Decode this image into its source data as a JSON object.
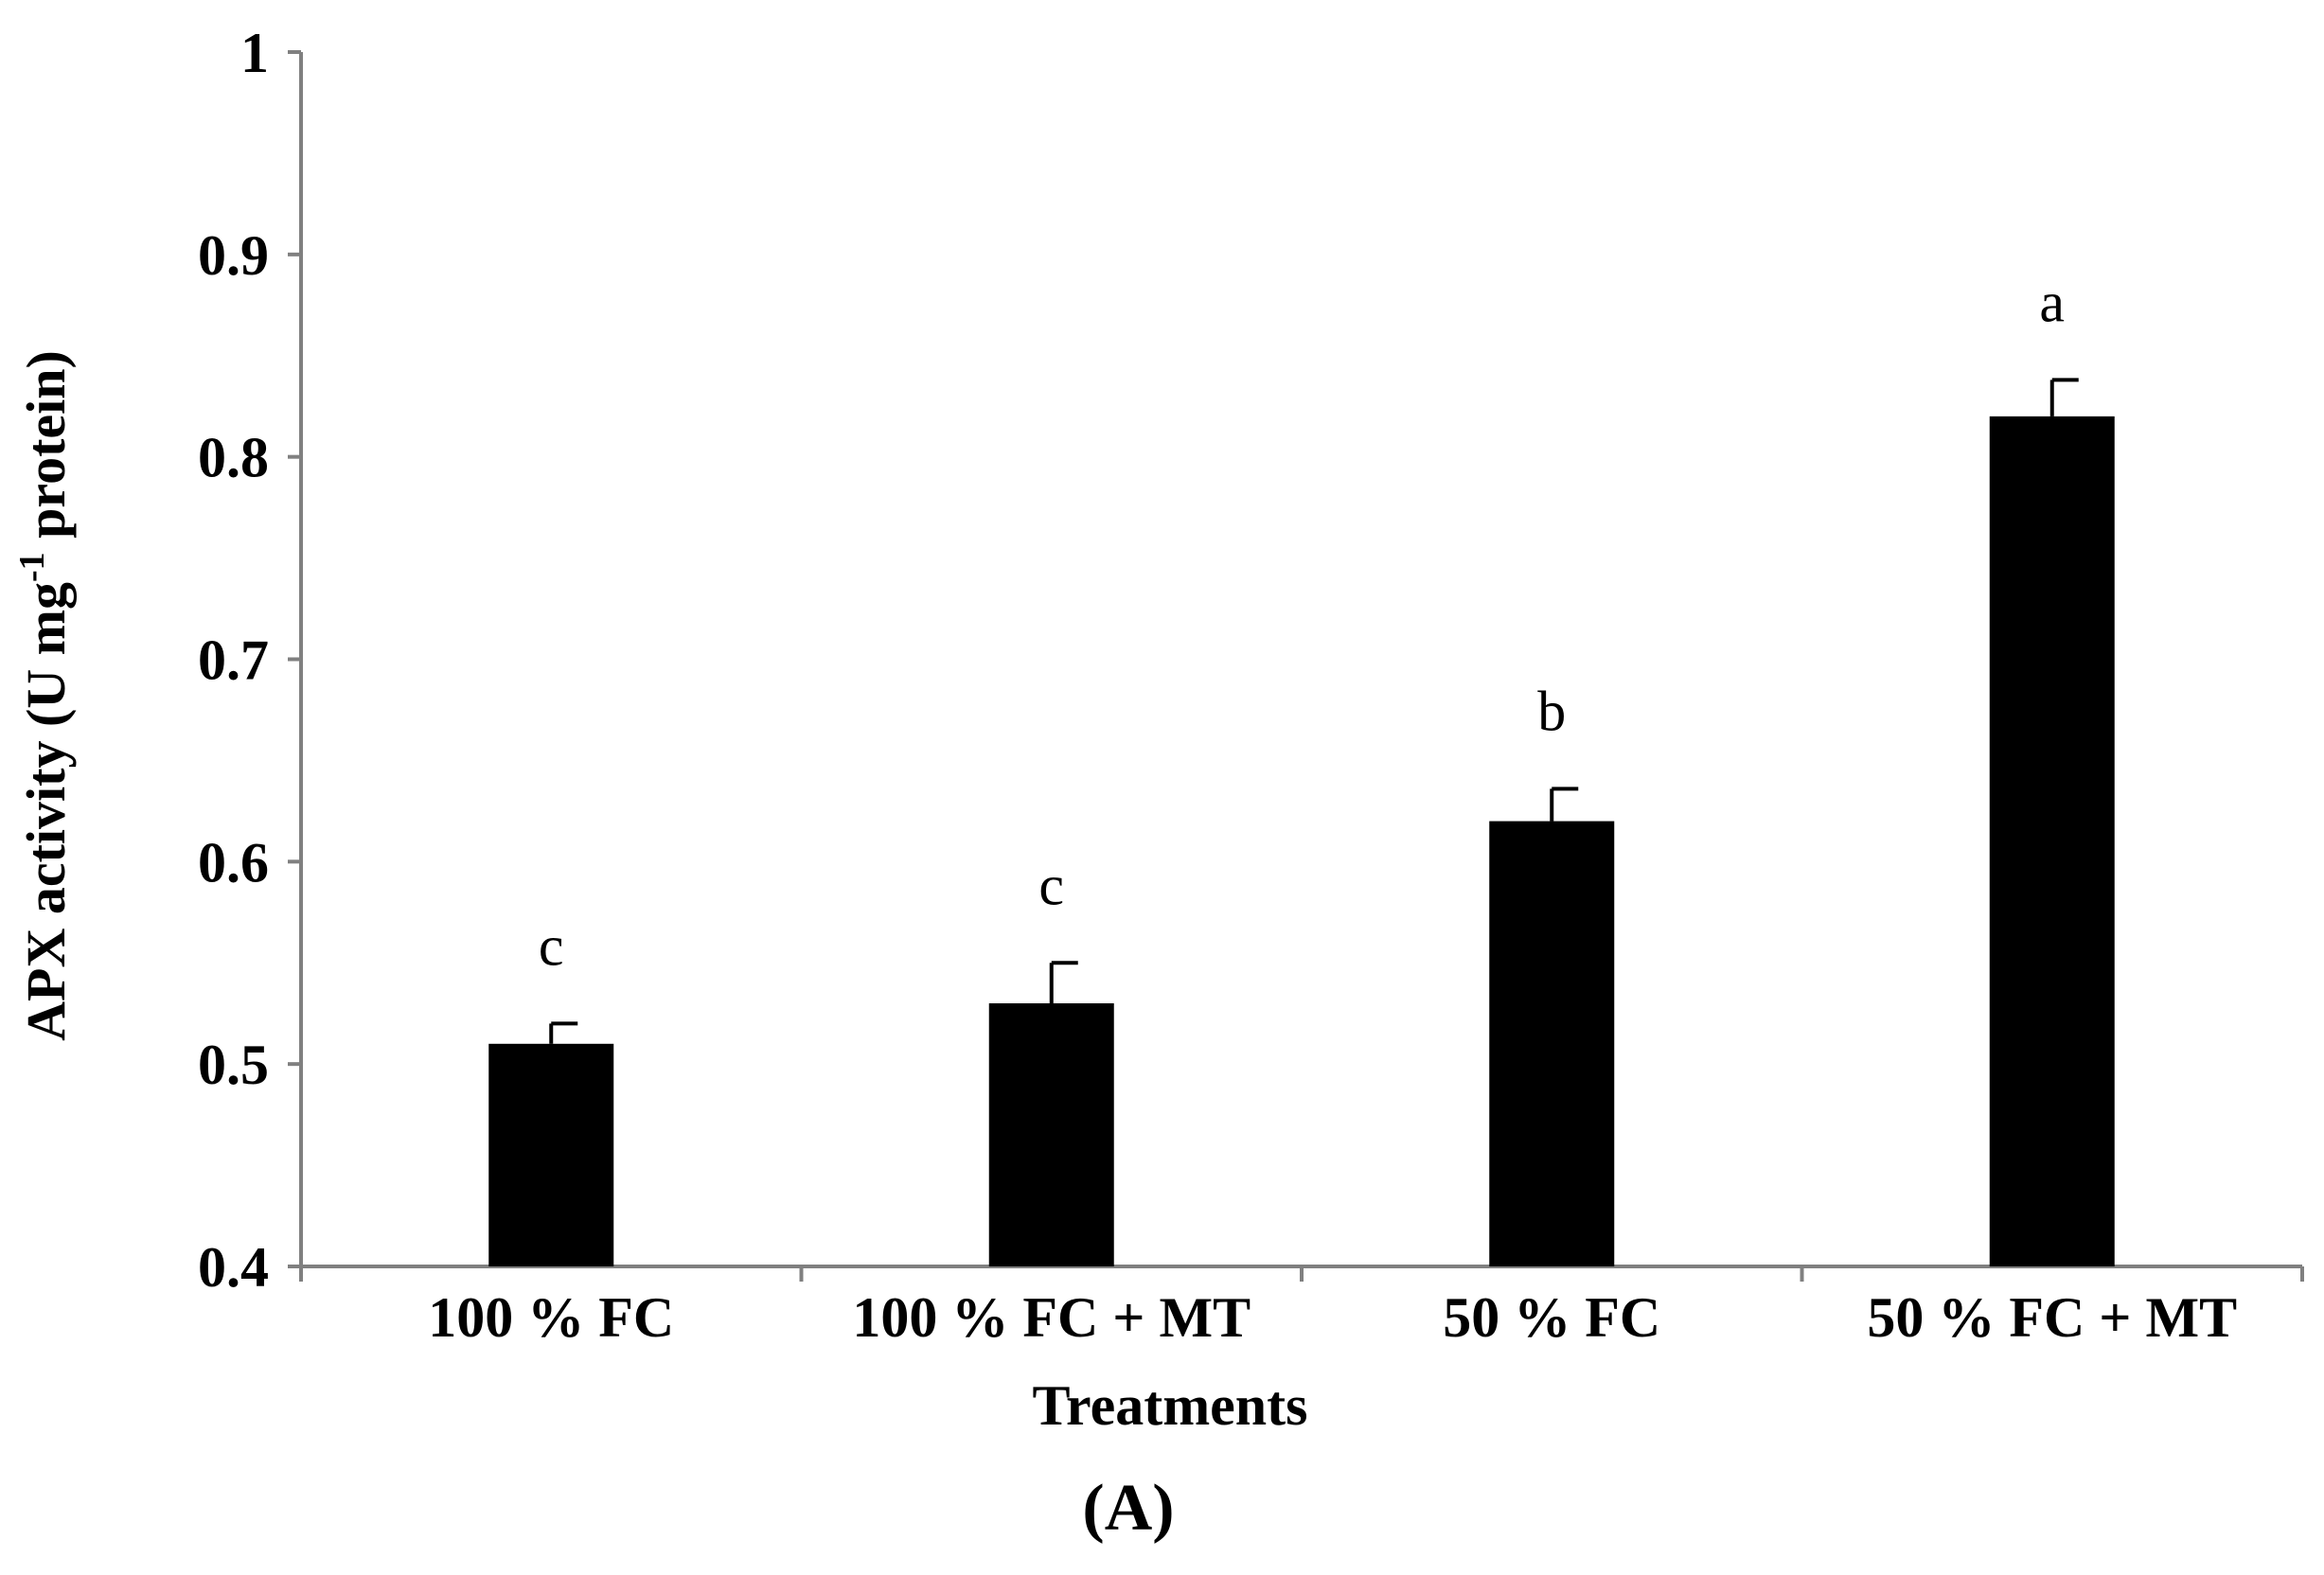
{
  "chart_data": {
    "type": "bar",
    "title": "",
    "xlabel": "Treatments",
    "ylabel": {
      "prefix": "APX activity (U mg",
      "superscript": "-1",
      "suffix": " protein)"
    },
    "ylim": [
      0.4,
      1.0
    ],
    "yticks": [
      "0.4",
      "0.5",
      "0.6",
      "0.7",
      "0.8",
      "0.9",
      "1"
    ],
    "categories": [
      "100 % FC",
      "100 % FC + MT",
      "50 % FC",
      "50 % FC + MT"
    ],
    "values": [
      0.51,
      0.53,
      0.62,
      0.82
    ],
    "errors": [
      0.01,
      0.02,
      0.016,
      0.018
    ],
    "significance_letters": [
      "c",
      "c",
      "b",
      "a"
    ],
    "panel_label": "(A)",
    "bar_color": "#000000",
    "axis_color": "#808080",
    "grid": false
  }
}
